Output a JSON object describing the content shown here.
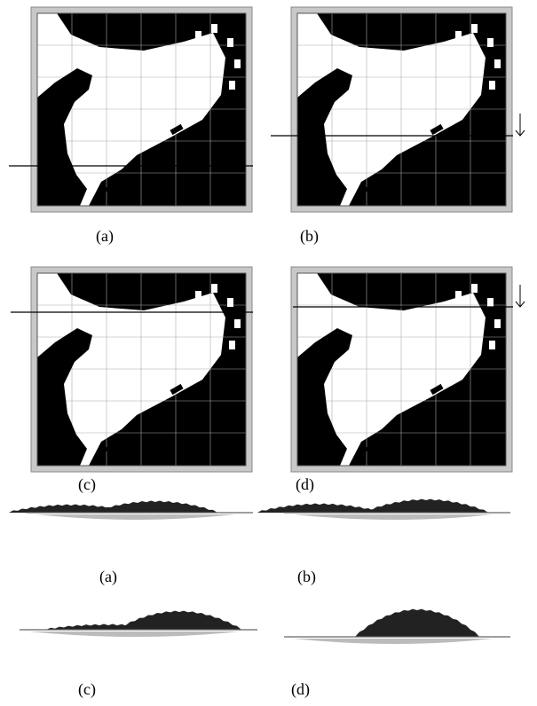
{
  "maps": [
    {
      "caption": "(a)"
    },
    {
      "caption": "(b)"
    },
    {
      "caption": "(c)"
    },
    {
      "caption": "(d)"
    }
  ],
  "profiles": [
    {
      "caption": "(a)"
    },
    {
      "caption": "(b)"
    },
    {
      "caption": "(c)"
    },
    {
      "caption": "(d)"
    }
  ]
}
